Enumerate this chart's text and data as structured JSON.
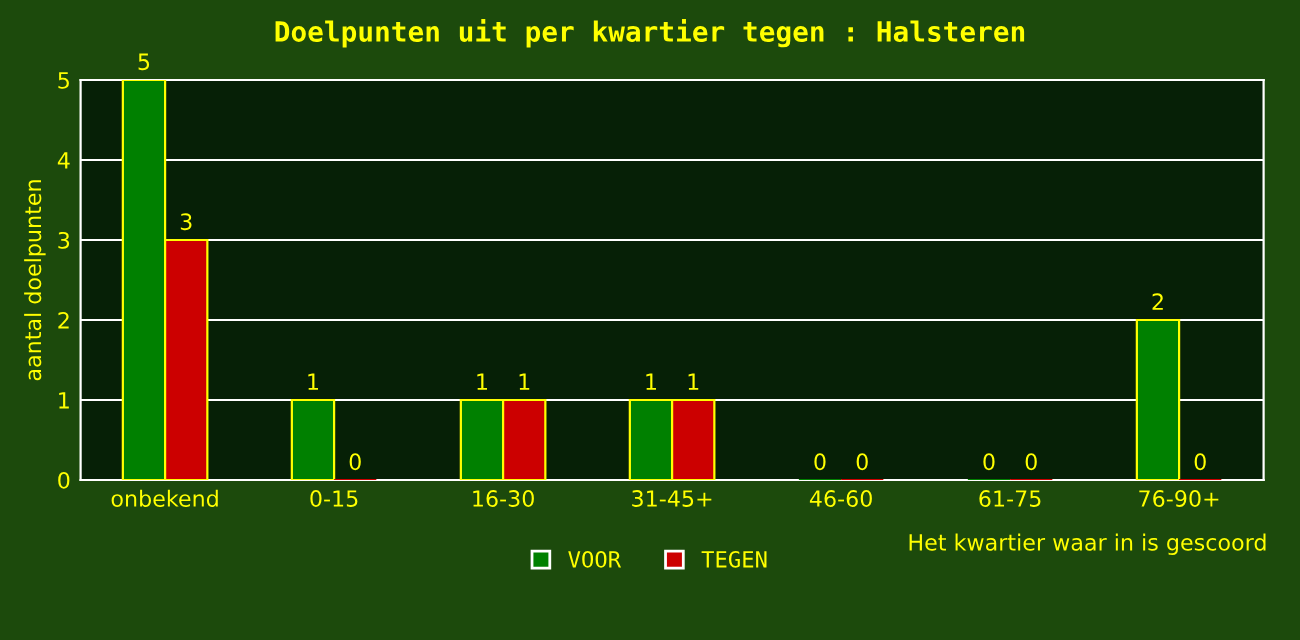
{
  "chart_data": {
    "type": "bar",
    "title": "Doelpunten uit per kwartier tegen : Halsteren",
    "xlabel": "Het kwartier waar in is gescoord",
    "ylabel": "aantal doelpunten",
    "categories": [
      "onbekend",
      "0-15",
      "16-30",
      "31-45+",
      "46-60",
      "61-75",
      "76-90+"
    ],
    "series": [
      {
        "name": "VOOR",
        "color": "#008000",
        "values": [
          5,
          1,
          1,
          1,
          0,
          0,
          2
        ]
      },
      {
        "name": "TEGEN",
        "color": "#cc0000",
        "values": [
          3,
          0,
          1,
          1,
          0,
          0,
          0
        ]
      }
    ],
    "ylim": [
      0,
      5
    ],
    "yticks": [
      0,
      1,
      2,
      3,
      4,
      5
    ],
    "grid": "y",
    "legend": "bottom",
    "data_labels": true
  }
}
